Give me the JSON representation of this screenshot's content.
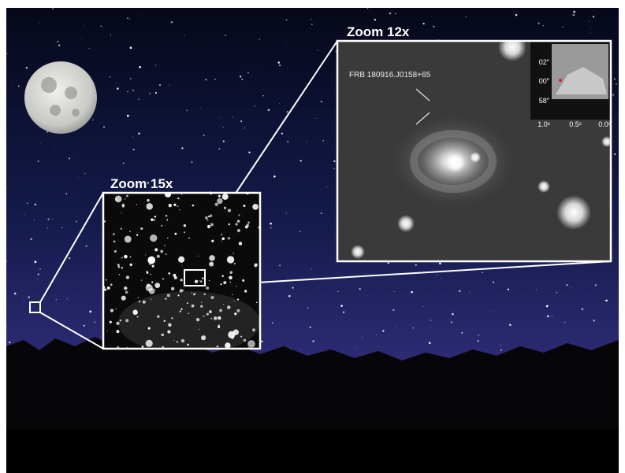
{
  "panels": {
    "zoom_15x": {
      "title": "Zoom 15x"
    },
    "zoom_12x": {
      "title": "Zoom 12x",
      "source_label": "FRB 180916.J0158+65",
      "inset": {
        "y_labels": [
          "02″",
          "00″",
          "58″"
        ],
        "x_labels": [
          "1.0ˢ",
          "0.5ˢ",
          "0.0ˢ"
        ]
      }
    }
  }
}
